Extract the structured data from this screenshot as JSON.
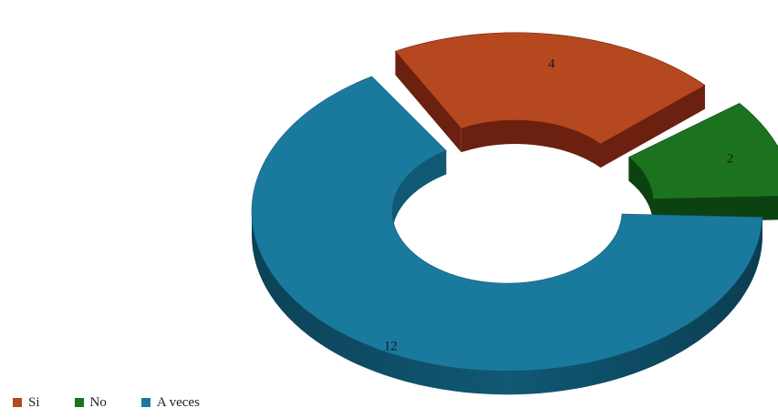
{
  "chart_data": {
    "type": "pie",
    "variant": "3d-exploded-doughnut",
    "categories": [
      "Si",
      "No",
      "A veces"
    ],
    "values": [
      4,
      2,
      12
    ],
    "colors": [
      "#b5481f",
      "#1b7320",
      "#1a7a9e"
    ],
    "side_colors": [
      "#6b2010",
      "#0c4210",
      "#105874"
    ],
    "data_labels": [
      "4",
      "2",
      "12"
    ],
    "title": "",
    "legend_position": "bottom-left"
  }
}
